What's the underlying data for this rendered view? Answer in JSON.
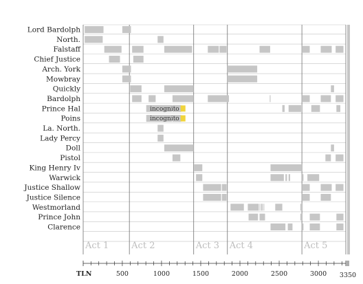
{
  "chart_data": {
    "type": "timeline",
    "xlabel": "TLN",
    "xlim": [
      1,
      3350
    ],
    "x_ticks": [
      500,
      1000,
      1500,
      2000,
      2500,
      3000
    ],
    "end_tick_label": "3350",
    "characters": [
      "Lord Bardolph",
      "North.",
      "Falstaff",
      "Chief Justice",
      "Arch. York",
      "Mowbray",
      "Quickly",
      "Bardolph",
      "Prince Hal",
      "Poins",
      "La. North.",
      "Lady Percy",
      "Doll",
      "Pistol",
      "King Henry Iv",
      "Warwick",
      "Justice Shallow",
      "Justice Silence",
      "Westmorland",
      "Prince John",
      "Clarence"
    ],
    "acts": [
      {
        "label": "Act 1",
        "start": 1
      },
      {
        "label": "Act 2",
        "start": 590
      },
      {
        "label": "Act 3",
        "start": 1410
      },
      {
        "label": "Act 4",
        "start": 1840
      },
      {
        "label": "Act 5",
        "start": 2790
      }
    ],
    "series": [
      {
        "character": "Lord Bardolph",
        "segments": [
          [
            20,
            260
          ],
          [
            500,
            610
          ]
        ]
      },
      {
        "character": "North.",
        "segments": [
          [
            20,
            250
          ],
          [
            950,
            1025
          ]
        ]
      },
      {
        "character": "Falstaff",
        "segments": [
          [
            270,
            490
          ],
          [
            625,
            770
          ],
          [
            1035,
            1390
          ],
          [
            1590,
            1730
          ],
          [
            1740,
            1830
          ],
          [
            2250,
            2385
          ],
          [
            2790,
            2890
          ],
          [
            3030,
            3170
          ],
          [
            3220,
            3320
          ]
        ]
      },
      {
        "character": "Chief Justice",
        "segments": [
          [
            330,
            470
          ],
          [
            640,
            770
          ]
        ]
      },
      {
        "character": "Arch. York",
        "segments": [
          [
            500,
            610
          ],
          [
            1840,
            2220
          ]
        ]
      },
      {
        "character": "Mowbray",
        "segments": [
          [
            500,
            610
          ],
          [
            1840,
            2220
          ]
        ]
      },
      {
        "character": "Quickly",
        "segments": [
          [
            600,
            745
          ],
          [
            1035,
            1410
          ],
          [
            3160,
            3200
          ]
        ]
      },
      {
        "character": "Bardolph",
        "segments": [
          [
            625,
            745
          ],
          [
            835,
            925
          ],
          [
            1140,
            1410
          ],
          [
            1590,
            1860
          ],
          [
            2380,
            2390
          ],
          [
            2790,
            2890
          ],
          [
            3030,
            3160
          ],
          [
            3220,
            3320
          ]
        ]
      },
      {
        "character": "Prince Hal",
        "segments": [
          [
            805,
            1135
          ],
          [
            1140,
            1250
          ],
          [
            2540,
            2570
          ],
          [
            2620,
            2780
          ],
          [
            2910,
            3020
          ],
          [
            3230,
            3280
          ]
        ]
      },
      {
        "character": "Poins",
        "segments": [
          [
            805,
            1135
          ],
          [
            1140,
            1250
          ]
        ]
      },
      {
        "character": "La. North.",
        "segments": [
          [
            950,
            1025
          ]
        ]
      },
      {
        "character": "Lady Percy",
        "segments": [
          [
            950,
            1025
          ]
        ]
      },
      {
        "character": "Doll",
        "segments": [
          [
            1035,
            1410
          ],
          [
            3160,
            3200
          ]
        ]
      },
      {
        "character": "Pistol",
        "segments": [
          [
            1140,
            1240
          ],
          [
            3090,
            3160
          ],
          [
            3220,
            3320
          ]
        ]
      },
      {
        "character": "King Henry Iv",
        "segments": [
          [
            1415,
            1520
          ],
          [
            2390,
            2790
          ]
        ]
      },
      {
        "character": "Warwick",
        "segments": [
          [
            1440,
            1520
          ],
          [
            2390,
            2560
          ],
          [
            2580,
            2600
          ],
          [
            2620,
            2640
          ],
          [
            2790,
            2810
          ],
          [
            2860,
            3010
          ]
        ]
      },
      {
        "character": "Justice Shallow",
        "segments": [
          [
            1530,
            1760
          ],
          [
            1770,
            1830
          ],
          [
            2790,
            2890
          ],
          [
            3030,
            3170
          ],
          [
            3220,
            3320
          ]
        ]
      },
      {
        "character": "Justice Silence",
        "segments": [
          [
            1530,
            1760
          ],
          [
            1770,
            1830
          ],
          [
            2790,
            2890
          ],
          [
            3030,
            3160
          ]
        ]
      },
      {
        "character": "Westmorland",
        "segments": [
          [
            1880,
            2050
          ],
          [
            2100,
            2240
          ],
          [
            2250,
            2260
          ],
          [
            2270,
            2290
          ],
          [
            2300,
            2310
          ],
          [
            2450,
            2540
          ],
          [
            2770,
            2800
          ]
        ]
      },
      {
        "character": "Prince John",
        "segments": [
          [
            2110,
            2230
          ],
          [
            2250,
            2320
          ],
          [
            2770,
            2790
          ],
          [
            2890,
            3020
          ],
          [
            3230,
            3320
          ]
        ]
      },
      {
        "character": "Clarence",
        "segments": [
          [
            2390,
            2580
          ],
          [
            2610,
            2670
          ],
          [
            2790,
            2810
          ],
          [
            2890,
            3020
          ],
          [
            3230,
            3320
          ]
        ]
      }
    ],
    "annotations": [
      {
        "character": "Prince Hal",
        "text": "incognito",
        "x": 1270
      },
      {
        "character": "Poins",
        "text": "incognito",
        "x": 1270
      }
    ],
    "colors": {
      "segment": "#c6c6c6",
      "highlight": "#f0d43c",
      "grid": "#c4c4c4",
      "act_line": "#6f6f6f"
    }
  }
}
